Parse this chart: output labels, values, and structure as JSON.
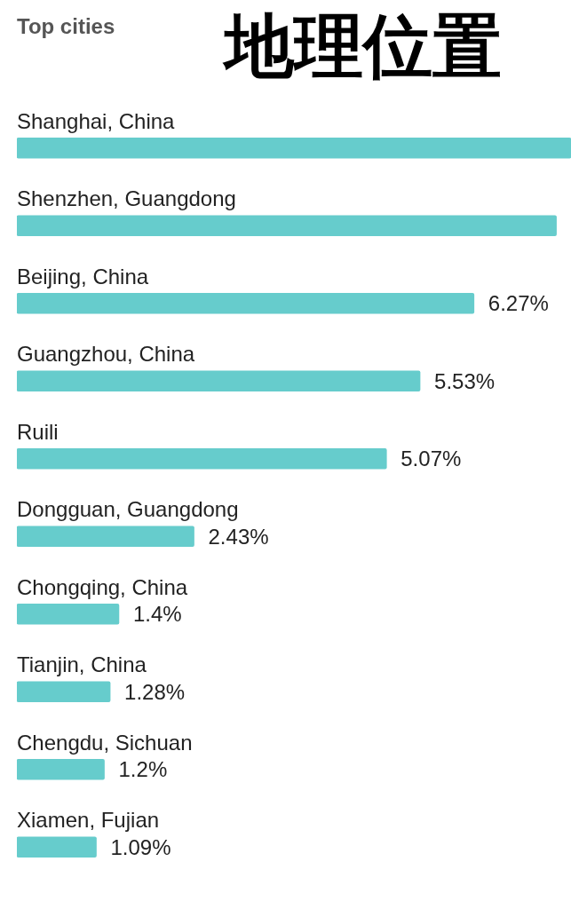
{
  "chart_data": {
    "type": "bar",
    "orientation": "horizontal",
    "title": "地理位置",
    "subtitle": "Top cities",
    "categories": [
      "Shanghai, China",
      "Shenzhen, Guangdong",
      "Beijing, China",
      "Guangzhou, China",
      "Ruili",
      "Dongguan, Guangdong",
      "Chongqing, China",
      "Tianjin, China",
      "Chengdu, Sichuan",
      "Xiamen, Fujian"
    ],
    "values": [
      7.6,
      7.4,
      6.27,
      5.53,
      5.07,
      2.43,
      1.4,
      1.28,
      1.2,
      1.09
    ],
    "value_labels": [
      null,
      null,
      "6.27%",
      "5.53%",
      "5.07%",
      "2.43%",
      "1.4%",
      "1.28%",
      "1.2%",
      "1.09%"
    ],
    "color": "#66cccc",
    "xlim": [
      0,
      7.6
    ],
    "legend": false
  }
}
